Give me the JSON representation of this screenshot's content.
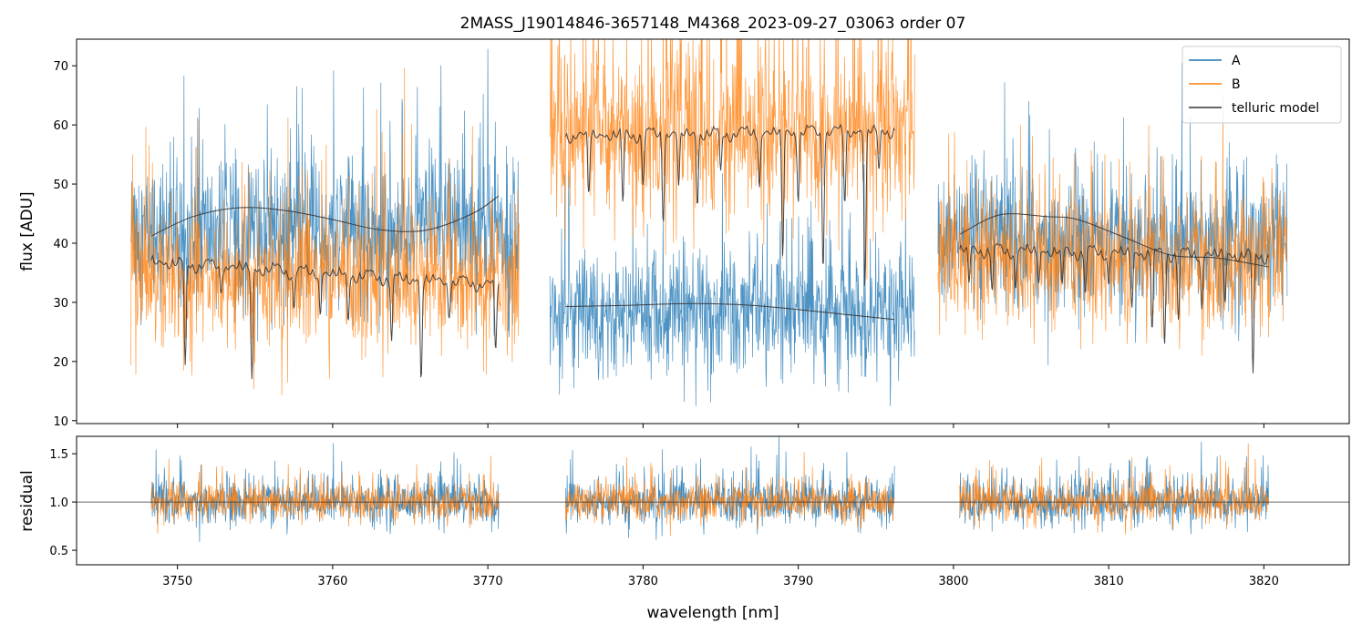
{
  "chart_data": [
    {
      "type": "line",
      "title": "2MASS_J19014846-3657148_M4368_2023-09-27_03063  order 07",
      "xlabel": "",
      "ylabel": "flux [ADU]",
      "xlim": [
        3743.5,
        3825.5
      ],
      "ylim": [
        9.5,
        74.5
      ],
      "x_ticks": [
        3750,
        3760,
        3770,
        3780,
        3790,
        3800,
        3810,
        3820
      ],
      "y_ticks": [
        10,
        20,
        30,
        40,
        50,
        60,
        70
      ],
      "y_tick_labels": [
        "10",
        "20",
        "30",
        "40",
        "50",
        "60",
        "70"
      ],
      "legend_position": "top-right",
      "grid": false,
      "series": [
        {
          "name": "A",
          "color": "#1f77b4",
          "segments": [
            {
              "x_range": [
                3747.0,
                3772.0
              ],
              "mean": 42,
              "noise": 11
            },
            {
              "x_range": [
                3774.0,
                3797.5
              ],
              "mean": 28,
              "noise": 9
            },
            {
              "x_range": [
                3799.0,
                3821.5
              ],
              "mean": 40,
              "noise": 10
            }
          ]
        },
        {
          "name": "B",
          "color": "#ff7f0e",
          "segments": [
            {
              "x_range": [
                3747.0,
                3772.0
              ],
              "mean": 34,
              "noise": 10
            },
            {
              "x_range": [
                3774.0,
                3797.5
              ],
              "mean": 59,
              "noise": 13
            },
            {
              "x_range": [
                3799.0,
                3821.5
              ],
              "mean": 37,
              "noise": 10
            }
          ]
        },
        {
          "name": "telluric model",
          "color": "#333333",
          "curves": [
            {
              "kind": "smooth",
              "x": [
                3748.3,
                3751,
                3754,
                3757,
                3760,
                3763,
                3766,
                3769,
                3770.7
              ],
              "y": [
                41.2,
                44.5,
                46.0,
                45.5,
                44.0,
                42.3,
                42.2,
                45.0,
                48.0
              ]
            },
            {
              "kind": "absorption",
              "x_range": [
                3748.3,
                3770.7
              ],
              "continuum": [
                37.5,
                33.5
              ],
              "lines": [
                {
                  "x": 3750.5,
                  "depth": 18
                },
                {
                  "x": 3752.8,
                  "depth": 4
                },
                {
                  "x": 3754.8,
                  "depth": 19
                },
                {
                  "x": 3757.5,
                  "depth": 6
                },
                {
                  "x": 3759.2,
                  "depth": 7
                },
                {
                  "x": 3761.0,
                  "depth": 8
                },
                {
                  "x": 3763.8,
                  "depth": 11
                },
                {
                  "x": 3765.7,
                  "depth": 17
                },
                {
                  "x": 3767.5,
                  "depth": 5
                },
                {
                  "x": 3770.5,
                  "depth": 11
                }
              ]
            },
            {
              "kind": "smooth",
              "x": [
                3775.0,
                3779,
                3783,
                3787,
                3791,
                3796.2
              ],
              "y": [
                29.3,
                29.5,
                29.8,
                29.5,
                28.5,
                27.1
              ]
            },
            {
              "kind": "absorption",
              "x_range": [
                3775.0,
                3796.2
              ],
              "continuum": [
                58.8,
                59.6
              ],
              "lines": [
                {
                  "x": 3776.5,
                  "depth": 10
                },
                {
                  "x": 3778.7,
                  "depth": 12
                },
                {
                  "x": 3780.0,
                  "depth": 8
                },
                {
                  "x": 3781.3,
                  "depth": 14
                },
                {
                  "x": 3782.3,
                  "depth": 9
                },
                {
                  "x": 3783.5,
                  "depth": 12
                },
                {
                  "x": 3785.0,
                  "depth": 7
                },
                {
                  "x": 3787.5,
                  "depth": 9
                },
                {
                  "x": 3789.0,
                  "depth": 21
                },
                {
                  "x": 3790.0,
                  "depth": 11
                },
                {
                  "x": 3791.6,
                  "depth": 22
                },
                {
                  "x": 3793.0,
                  "depth": 12
                },
                {
                  "x": 3794.3,
                  "depth": 26
                },
                {
                  "x": 3795.2,
                  "depth": 7
                }
              ]
            },
            {
              "kind": "smooth",
              "x": [
                3800.4,
                3803,
                3806,
                3808,
                3811,
                3814,
                3817,
                3820.3
              ],
              "y": [
                41.5,
                44.8,
                44.5,
                44.0,
                41.0,
                38.0,
                37.5,
                36.0
              ]
            },
            {
              "kind": "absorption",
              "x_range": [
                3800.4,
                3820.3
              ],
              "continuum": [
                39.5,
                38.5
              ],
              "lines": [
                {
                  "x": 3801.0,
                  "depth": 6
                },
                {
                  "x": 3802.5,
                  "depth": 7
                },
                {
                  "x": 3804.0,
                  "depth": 6
                },
                {
                  "x": 3805.5,
                  "depth": 5
                },
                {
                  "x": 3807.0,
                  "depth": 6
                },
                {
                  "x": 3808.5,
                  "depth": 7
                },
                {
                  "x": 3810.0,
                  "depth": 5
                },
                {
                  "x": 3811.5,
                  "depth": 9
                },
                {
                  "x": 3812.8,
                  "depth": 13
                },
                {
                  "x": 3813.6,
                  "depth": 15
                },
                {
                  "x": 3814.5,
                  "depth": 11
                },
                {
                  "x": 3816.0,
                  "depth": 9
                },
                {
                  "x": 3817.5,
                  "depth": 8
                },
                {
                  "x": 3819.3,
                  "depth": 21
                }
              ]
            }
          ]
        }
      ]
    },
    {
      "type": "line",
      "title": "",
      "xlabel": "wavelength [nm]",
      "ylabel": "residual",
      "xlim": [
        3743.5,
        3825.5
      ],
      "ylim": [
        0.35,
        1.68
      ],
      "x_ticks": [
        3750,
        3760,
        3770,
        3780,
        3790,
        3800,
        3810,
        3820
      ],
      "x_tick_labels": [
        "3750",
        "3760",
        "3770",
        "3780",
        "3790",
        "3800",
        "3810",
        "3820"
      ],
      "y_ticks": [
        0.5,
        1.0,
        1.5
      ],
      "y_tick_labels": [
        "0.5",
        "1.0",
        "1.5"
      ],
      "reference_line": 1.0,
      "series": [
        {
          "name": "A",
          "color": "#1f77b4",
          "segments": [
            [
              3748.3,
              3770.7
            ],
            [
              3775.0,
              3796.2
            ],
            [
              3800.4,
              3820.3
            ]
          ],
          "mean": 1.0,
          "noise": 0.2
        },
        {
          "name": "B",
          "color": "#ff7f0e",
          "segments": [
            [
              3748.3,
              3770.7
            ],
            [
              3775.0,
              3796.2
            ],
            [
              3800.4,
              3820.3
            ]
          ],
          "mean": 1.0,
          "noise": 0.17
        }
      ]
    }
  ]
}
